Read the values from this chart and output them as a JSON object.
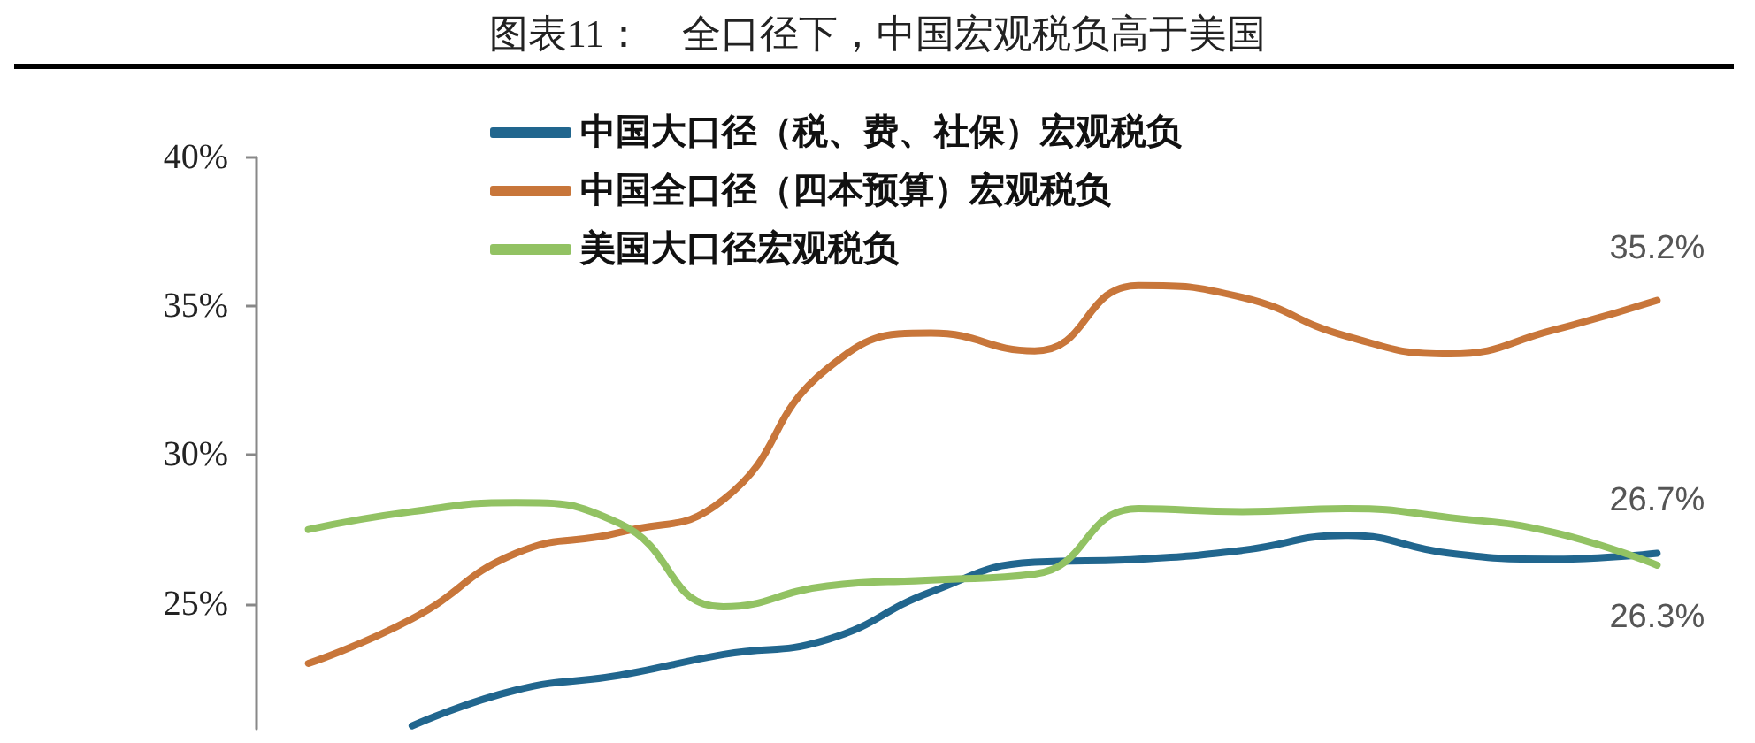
{
  "chart_data": {
    "type": "line",
    "title": "图表11：　全口径下，中国宏观税负高于美国",
    "categories": [
      null,
      null,
      null,
      null,
      null,
      null,
      null,
      null,
      null,
      null,
      null,
      null,
      null,
      null
    ],
    "series": [
      {
        "name": "中国大口径（税、费、社保）宏观税负",
        "color": "#21668e",
        "values": [
          null,
          20.9,
          22.1,
          22.6,
          23.3,
          23.8,
          25.4,
          26.4,
          26.5,
          26.8,
          27.3,
          26.7,
          26.5,
          26.7
        ],
        "value_labels": [
          null,
          null,
          null,
          null,
          null,
          null,
          null,
          null,
          null,
          null,
          null,
          null,
          null,
          "26.7%"
        ]
      },
      {
        "name": "中国全口径（四本预算）宏观税负",
        "color": "#c8763a",
        "values": [
          23.0,
          24.5,
          26.7,
          27.4,
          28.5,
          32.9,
          34.1,
          33.5,
          35.7,
          35.3,
          34.0,
          33.4,
          34.2,
          35.2
        ],
        "value_labels": [
          null,
          null,
          null,
          null,
          null,
          null,
          null,
          null,
          null,
          null,
          null,
          null,
          null,
          "35.2%"
        ]
      },
      {
        "name": "美国大口径宏观税负",
        "color": "#92c263",
        "values": [
          27.5,
          28.1,
          28.4,
          27.7,
          24.9,
          25.6,
          25.8,
          26.0,
          28.2,
          28.1,
          28.2,
          27.9,
          27.4,
          26.3
        ],
        "value_labels": [
          null,
          null,
          null,
          null,
          null,
          null,
          null,
          null,
          null,
          null,
          null,
          null,
          null,
          "26.3%"
        ]
      }
    ],
    "ylim": [
      20.8,
      40
    ],
    "yticks": [
      {
        "value": 25,
        "label": "25%"
      },
      {
        "value": 30,
        "label": "30%"
      },
      {
        "value": 35,
        "label": "35%"
      },
      {
        "value": 40,
        "label": "40%"
      }
    ],
    "grid": false,
    "legend": "top",
    "marker": "none",
    "line_style": "solid"
  }
}
